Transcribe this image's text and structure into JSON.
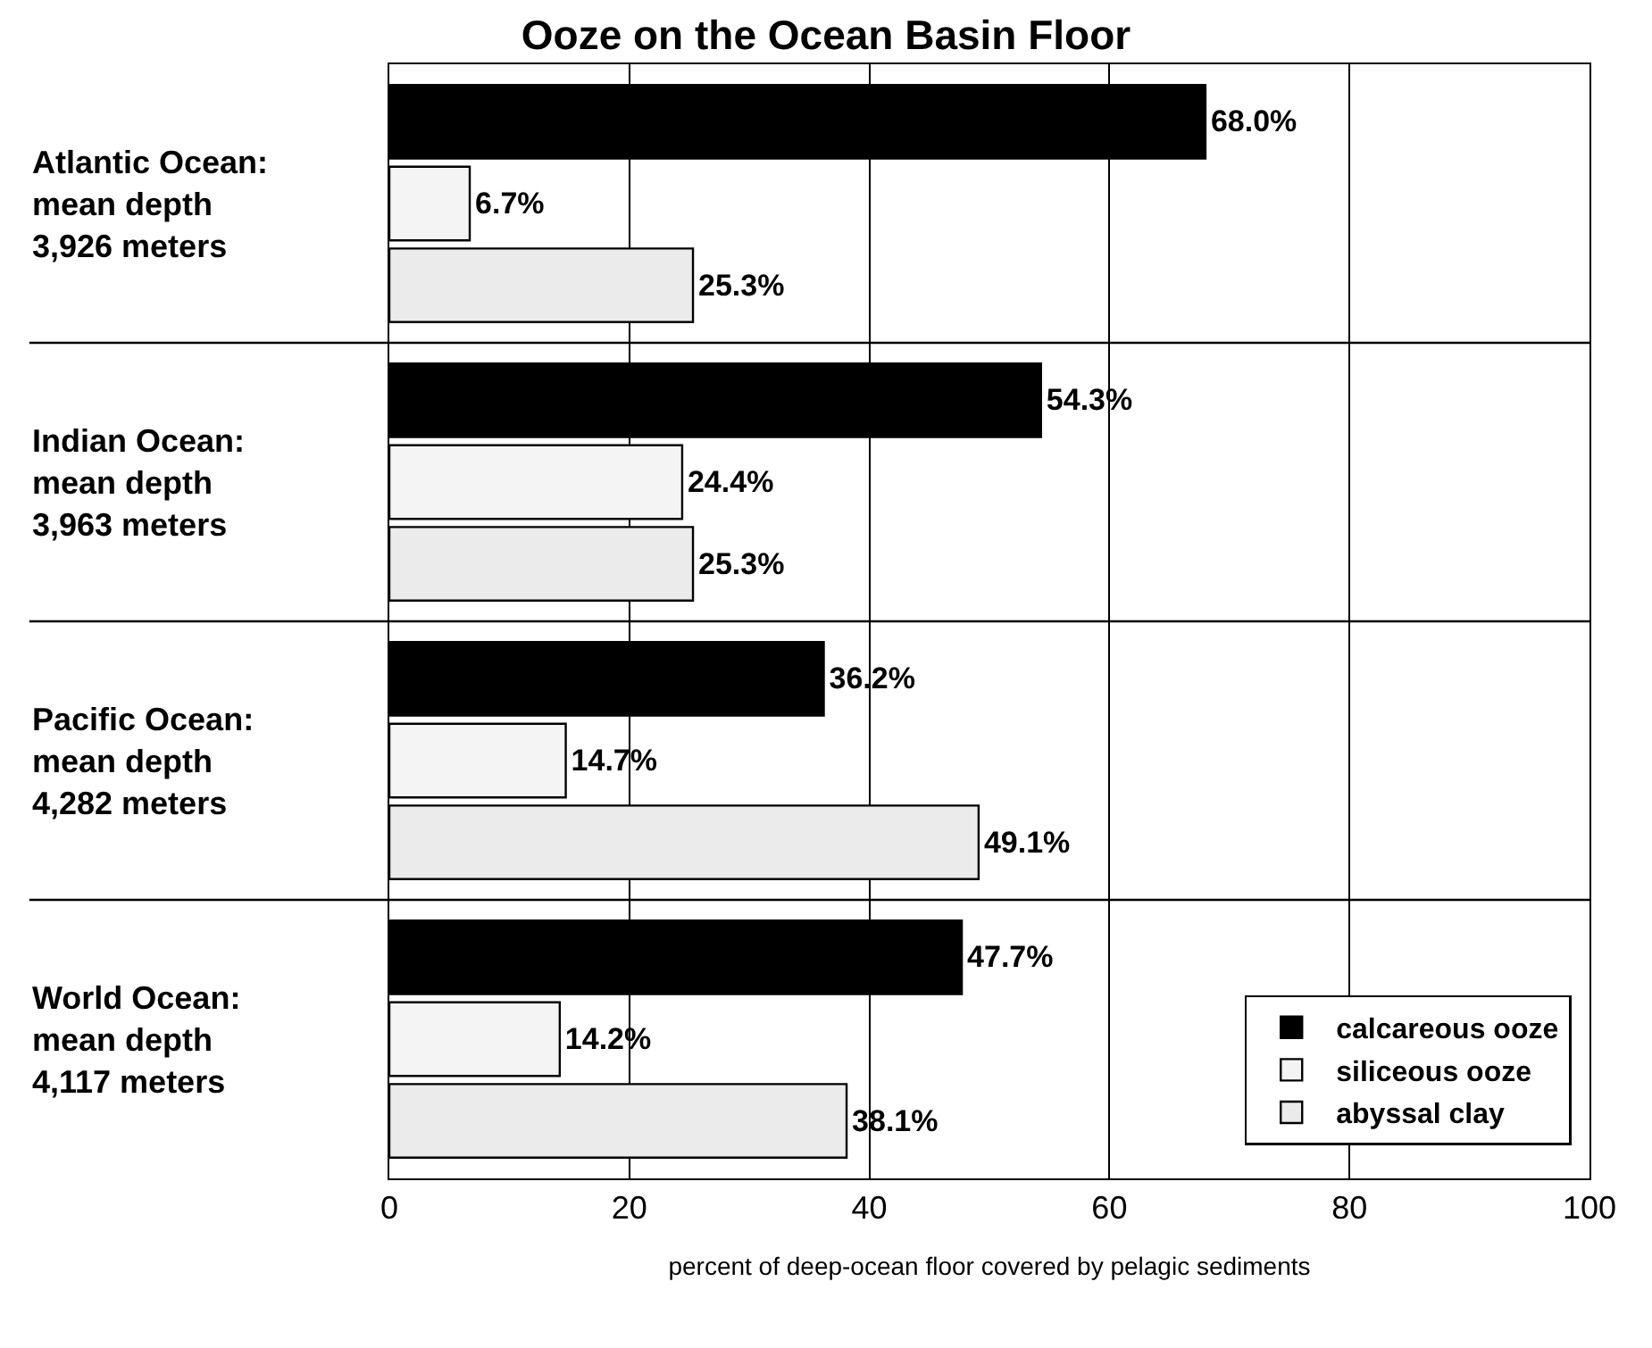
{
  "chart_data": {
    "type": "bar",
    "orientation": "horizontal",
    "title": "Ooze on the Ocean Basin Floor",
    "xlabel": "percent of deep-ocean floor covered by pelagic sediments",
    "categories": [
      "Atlantic Ocean:\nmean depth\n3,926 meters",
      "Indian Ocean:\nmean depth\n3,963 meters",
      "Pacific Ocean:\nmean depth\n4,282 meters",
      "World Ocean:\nmean depth\n4,117 meters"
    ],
    "series": [
      {
        "name": "calcareous ooze",
        "color": "#000000",
        "values": [
          68.0,
          54.3,
          36.2,
          47.7
        ],
        "value_labels": [
          "68.0%",
          "54.3%",
          "36.2%",
          "47.7%"
        ]
      },
      {
        "name": "siliceous ooze",
        "color": "#f4f4f4",
        "values": [
          6.7,
          24.4,
          14.7,
          14.2
        ],
        "value_labels": [
          "6.7%",
          "24.4%",
          "14.7%",
          "14.2%"
        ]
      },
      {
        "name": "abyssal clay",
        "color": "#ebebeb",
        "values": [
          25.3,
          25.3,
          49.1,
          38.1
        ],
        "value_labels": [
          "25.3%",
          "25.3%",
          "49.1%",
          "38.1%"
        ]
      }
    ],
    "xlim": [
      0,
      100
    ],
    "xticks": [
      0,
      20,
      40,
      60,
      80,
      100
    ],
    "grid": true,
    "legend": "bottom right"
  }
}
